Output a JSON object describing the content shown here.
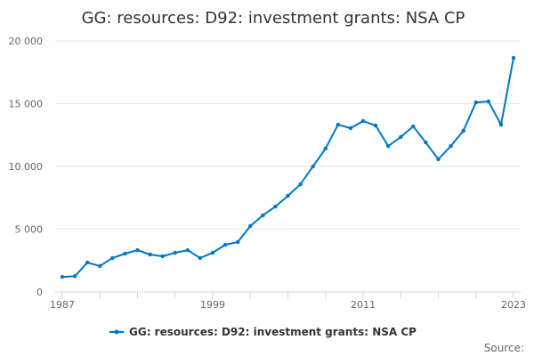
{
  "chart_data": {
    "type": "line",
    "title": "GG: resources: D92: investment grants: NSA CP",
    "xlabel": "",
    "ylabel": "",
    "ylim": [
      0,
      20000
    ],
    "yticks": [
      0,
      5000,
      10000,
      15000,
      20000
    ],
    "ytick_labels": [
      "0",
      "5 000",
      "10 000",
      "15 000",
      "20 000"
    ],
    "xtick_labels": [
      "1987",
      "1999",
      "2011",
      "2023"
    ],
    "grid": "horizontal",
    "legend_position": "bottom",
    "color": "#0077c0",
    "x": [
      1987,
      1988,
      1989,
      1990,
      1991,
      1992,
      1993,
      1994,
      1995,
      1996,
      1997,
      1998,
      1999,
      2000,
      2001,
      2002,
      2003,
      2004,
      2005,
      2006,
      2007,
      2008,
      2009,
      2010,
      2011,
      2012,
      2013,
      2014,
      2015,
      2016,
      2017,
      2018,
      2019,
      2020,
      2021,
      2022,
      2023
    ],
    "series": [
      {
        "name": "GG: resources: D92: investment grants: NSA CP",
        "values": [
          1200,
          1250,
          2340,
          2060,
          2700,
          3050,
          3330,
          2980,
          2840,
          3120,
          3330,
          2700,
          3120,
          3760,
          3970,
          5250,
          6100,
          6800,
          7660,
          8580,
          10000,
          11420,
          13330,
          13050,
          13620,
          13260,
          11630,
          12340,
          13190,
          11910,
          10570,
          11630,
          12840,
          15100,
          15180,
          13330,
          18650
        ]
      }
    ],
    "source_label": "Source:"
  }
}
